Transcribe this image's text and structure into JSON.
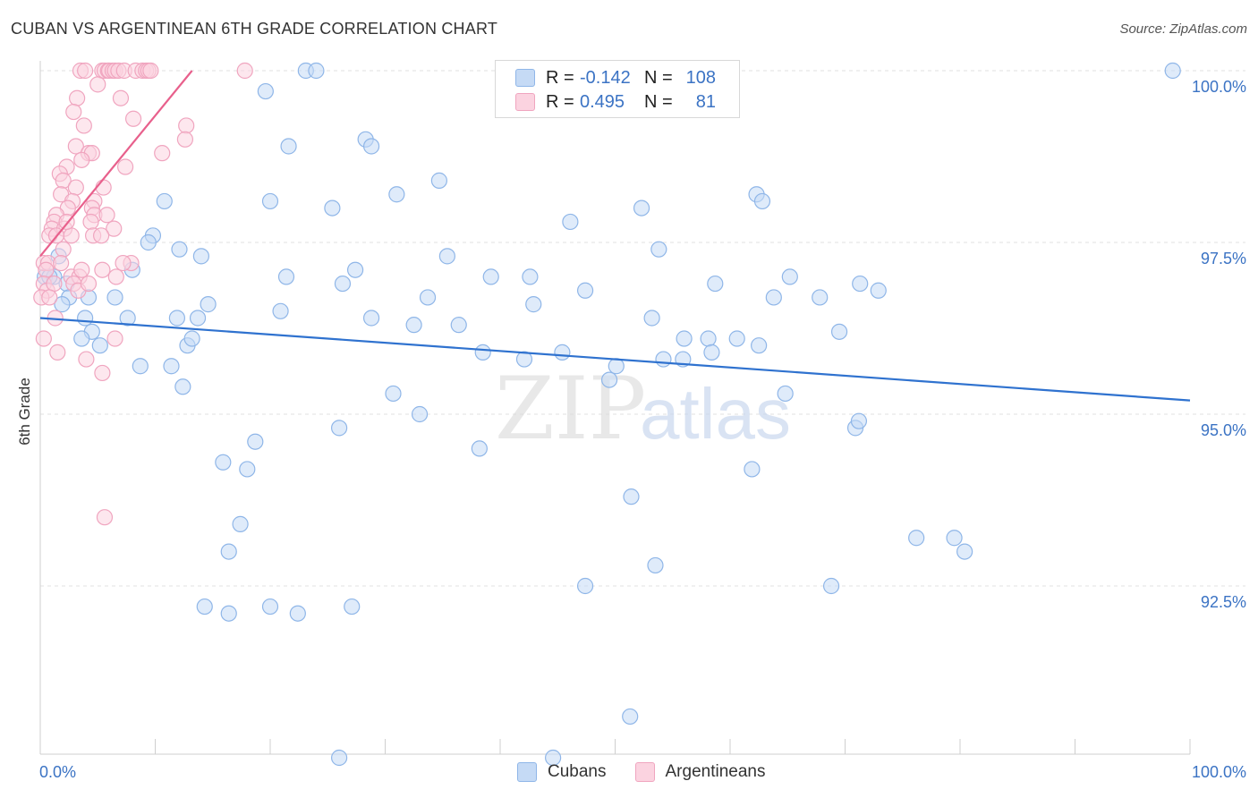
{
  "title": "CUBAN VS ARGENTINEAN 6TH GRADE CORRELATION CHART",
  "source": "Source: ZipAtlas.com",
  "watermark": {
    "zip": "ZIP",
    "atlas": "atlas"
  },
  "legend": {
    "rows": [
      {
        "r_label": "R =",
        "r_value": "-0.142",
        "n_label": "N =",
        "n_value": "108",
        "color": "#8fb6e8",
        "fill": "#c5daf5"
      },
      {
        "r_label": "R =",
        "r_value": "0.495",
        "n_label": "N =",
        "n_value": "81",
        "color": "#f0a5bf",
        "fill": "#fbd3e0"
      }
    ]
  },
  "bottom_legend": [
    {
      "label": "Cubans",
      "color": "#8fb6e8",
      "fill": "#c5daf5"
    },
    {
      "label": "Argentineans",
      "color": "#f0a5bf",
      "fill": "#fbd3e0"
    }
  ],
  "chart_data": {
    "type": "scatter",
    "title": "CUBAN VS ARGENTINEAN 6TH GRADE CORRELATION CHART",
    "xlabel": "",
    "ylabel": "6th Grade",
    "xlim": [
      0,
      100
    ],
    "ylim": [
      90.0,
      100.2
    ],
    "x_tick_labels": [
      "0.0%",
      "100.0%"
    ],
    "y_ticks": [
      92.5,
      95.0,
      97.5,
      100.0
    ],
    "y_tick_labels": [
      "92.5%",
      "95.0%",
      "97.5%",
      "100.0%"
    ],
    "grid": true,
    "series": [
      {
        "name": "Cubans",
        "color": "#8fb6e8",
        "fill": "#c5daf5",
        "line_color": "#2f72cf",
        "trend": {
          "x": [
            0,
            100
          ],
          "y": [
            96.4,
            95.2
          ]
        },
        "points": [
          [
            23.1,
            100.0
          ],
          [
            24.0,
            100.0
          ],
          [
            98.5,
            100.0
          ],
          [
            19.6,
            99.7
          ],
          [
            21.6,
            98.9
          ],
          [
            28.3,
            99.0
          ],
          [
            28.8,
            98.9
          ],
          [
            34.7,
            98.4
          ],
          [
            31.0,
            98.2
          ],
          [
            20.0,
            98.1
          ],
          [
            10.8,
            98.1
          ],
          [
            25.4,
            98.0
          ],
          [
            62.3,
            98.2
          ],
          [
            62.8,
            98.1
          ],
          [
            52.3,
            98.0
          ],
          [
            46.1,
            97.8
          ],
          [
            9.8,
            97.6
          ],
          [
            9.4,
            97.5
          ],
          [
            14.0,
            97.3
          ],
          [
            1.6,
            97.3
          ],
          [
            12.1,
            97.4
          ],
          [
            53.8,
            97.4
          ],
          [
            35.4,
            97.3
          ],
          [
            0.4,
            97.0
          ],
          [
            1.2,
            97.0
          ],
          [
            0.8,
            97.0
          ],
          [
            2.3,
            96.9
          ],
          [
            8.0,
            97.1
          ],
          [
            27.4,
            97.1
          ],
          [
            21.4,
            97.0
          ],
          [
            39.2,
            97.0
          ],
          [
            42.6,
            97.0
          ],
          [
            58.7,
            96.9
          ],
          [
            65.2,
            97.0
          ],
          [
            71.3,
            96.9
          ],
          [
            2.5,
            96.7
          ],
          [
            4.2,
            96.7
          ],
          [
            1.9,
            96.6
          ],
          [
            6.5,
            96.7
          ],
          [
            14.6,
            96.6
          ],
          [
            26.3,
            96.9
          ],
          [
            33.7,
            96.7
          ],
          [
            42.9,
            96.6
          ],
          [
            47.4,
            96.8
          ],
          [
            63.8,
            96.7
          ],
          [
            67.8,
            96.7
          ],
          [
            72.9,
            96.8
          ],
          [
            3.9,
            96.4
          ],
          [
            7.6,
            96.4
          ],
          [
            11.9,
            96.4
          ],
          [
            13.7,
            96.4
          ],
          [
            20.9,
            96.5
          ],
          [
            28.8,
            96.4
          ],
          [
            32.5,
            96.3
          ],
          [
            36.4,
            96.3
          ],
          [
            53.2,
            96.4
          ],
          [
            56.0,
            96.1
          ],
          [
            58.1,
            96.1
          ],
          [
            60.6,
            96.1
          ],
          [
            62.5,
            96.0
          ],
          [
            69.5,
            96.2
          ],
          [
            4.5,
            96.2
          ],
          [
            12.8,
            96.0
          ],
          [
            3.6,
            96.1
          ],
          [
            5.2,
            96.0
          ],
          [
            13.2,
            96.1
          ],
          [
            38.5,
            95.9
          ],
          [
            42.1,
            95.8
          ],
          [
            45.4,
            95.9
          ],
          [
            50.1,
            95.7
          ],
          [
            54.2,
            95.8
          ],
          [
            55.9,
            95.8
          ],
          [
            58.4,
            95.9
          ],
          [
            8.7,
            95.7
          ],
          [
            11.4,
            95.7
          ],
          [
            12.4,
            95.4
          ],
          [
            30.7,
            95.3
          ],
          [
            33.0,
            95.0
          ],
          [
            26.0,
            94.8
          ],
          [
            38.2,
            94.5
          ],
          [
            49.5,
            95.5
          ],
          [
            64.8,
            95.3
          ],
          [
            70.9,
            94.8
          ],
          [
            71.2,
            94.9
          ],
          [
            18.7,
            94.6
          ],
          [
            15.9,
            94.3
          ],
          [
            18.0,
            94.2
          ],
          [
            61.9,
            94.2
          ],
          [
            51.4,
            93.8
          ],
          [
            17.4,
            93.4
          ],
          [
            16.4,
            93.0
          ],
          [
            76.2,
            93.2
          ],
          [
            79.5,
            93.2
          ],
          [
            80.4,
            93.0
          ],
          [
            53.5,
            92.8
          ],
          [
            47.4,
            92.5
          ],
          [
            68.8,
            92.5
          ],
          [
            27.1,
            92.2
          ],
          [
            14.3,
            92.2
          ],
          [
            16.4,
            92.1
          ],
          [
            20.0,
            92.2
          ],
          [
            22.4,
            92.1
          ],
          [
            51.3,
            90.6
          ],
          [
            26.0,
            90.0
          ],
          [
            44.6,
            90.0
          ]
        ]
      },
      {
        "name": "Argentineans",
        "color": "#f0a5bf",
        "fill": "#fbd3e0",
        "line_color": "#e8608c",
        "trend": {
          "x": [
            0,
            13.2
          ],
          "y": [
            97.3,
            100.0
          ]
        },
        "points": [
          [
            3.5,
            100.0
          ],
          [
            3.9,
            100.0
          ],
          [
            5.4,
            100.0
          ],
          [
            5.6,
            100.0
          ],
          [
            5.9,
            100.0
          ],
          [
            6.0,
            100.0
          ],
          [
            6.3,
            100.0
          ],
          [
            6.5,
            100.0
          ],
          [
            6.8,
            100.0
          ],
          [
            7.3,
            100.0
          ],
          [
            8.3,
            100.0
          ],
          [
            8.9,
            100.0
          ],
          [
            9.2,
            100.0
          ],
          [
            9.4,
            100.0
          ],
          [
            9.6,
            100.0
          ],
          [
            17.8,
            100.0
          ],
          [
            5.0,
            99.8
          ],
          [
            7.0,
            99.6
          ],
          [
            3.2,
            99.6
          ],
          [
            2.9,
            99.4
          ],
          [
            8.1,
            99.3
          ],
          [
            3.8,
            99.2
          ],
          [
            12.7,
            99.2
          ],
          [
            12.6,
            99.0
          ],
          [
            3.1,
            98.9
          ],
          [
            4.2,
            98.8
          ],
          [
            4.5,
            98.8
          ],
          [
            10.6,
            98.8
          ],
          [
            3.6,
            98.7
          ],
          [
            2.3,
            98.6
          ],
          [
            7.4,
            98.6
          ],
          [
            1.7,
            98.5
          ],
          [
            2.0,
            98.4
          ],
          [
            3.1,
            98.3
          ],
          [
            5.5,
            98.3
          ],
          [
            1.8,
            98.2
          ],
          [
            2.8,
            98.1
          ],
          [
            4.7,
            98.1
          ],
          [
            2.4,
            98.0
          ],
          [
            4.5,
            98.0
          ],
          [
            1.4,
            97.9
          ],
          [
            4.7,
            97.9
          ],
          [
            1.2,
            97.8
          ],
          [
            4.4,
            97.8
          ],
          [
            1.0,
            97.7
          ],
          [
            2.1,
            97.7
          ],
          [
            6.4,
            97.7
          ],
          [
            0.8,
            97.6
          ],
          [
            1.4,
            97.6
          ],
          [
            4.6,
            97.6
          ],
          [
            2.7,
            97.6
          ],
          [
            5.3,
            97.6
          ],
          [
            2.0,
            97.4
          ],
          [
            0.3,
            97.2
          ],
          [
            0.7,
            97.2
          ],
          [
            1.8,
            97.2
          ],
          [
            0.5,
            97.1
          ],
          [
            5.4,
            97.1
          ],
          [
            7.9,
            97.2
          ],
          [
            2.7,
            97.0
          ],
          [
            3.4,
            97.0
          ],
          [
            6.6,
            97.0
          ],
          [
            0.3,
            96.9
          ],
          [
            2.9,
            96.9
          ],
          [
            3.3,
            96.8
          ],
          [
            0.6,
            96.8
          ],
          [
            0.1,
            96.7
          ],
          [
            1.3,
            96.4
          ],
          [
            0.3,
            96.1
          ],
          [
            1.5,
            95.9
          ],
          [
            4.0,
            95.8
          ],
          [
            5.4,
            95.6
          ],
          [
            5.6,
            93.5
          ],
          [
            7.2,
            97.2
          ],
          [
            1.2,
            96.9
          ],
          [
            6.5,
            96.1
          ],
          [
            0.8,
            96.7
          ],
          [
            2.3,
            97.8
          ],
          [
            3.6,
            97.1
          ],
          [
            5.8,
            97.9
          ],
          [
            4.2,
            96.9
          ]
        ]
      }
    ]
  }
}
